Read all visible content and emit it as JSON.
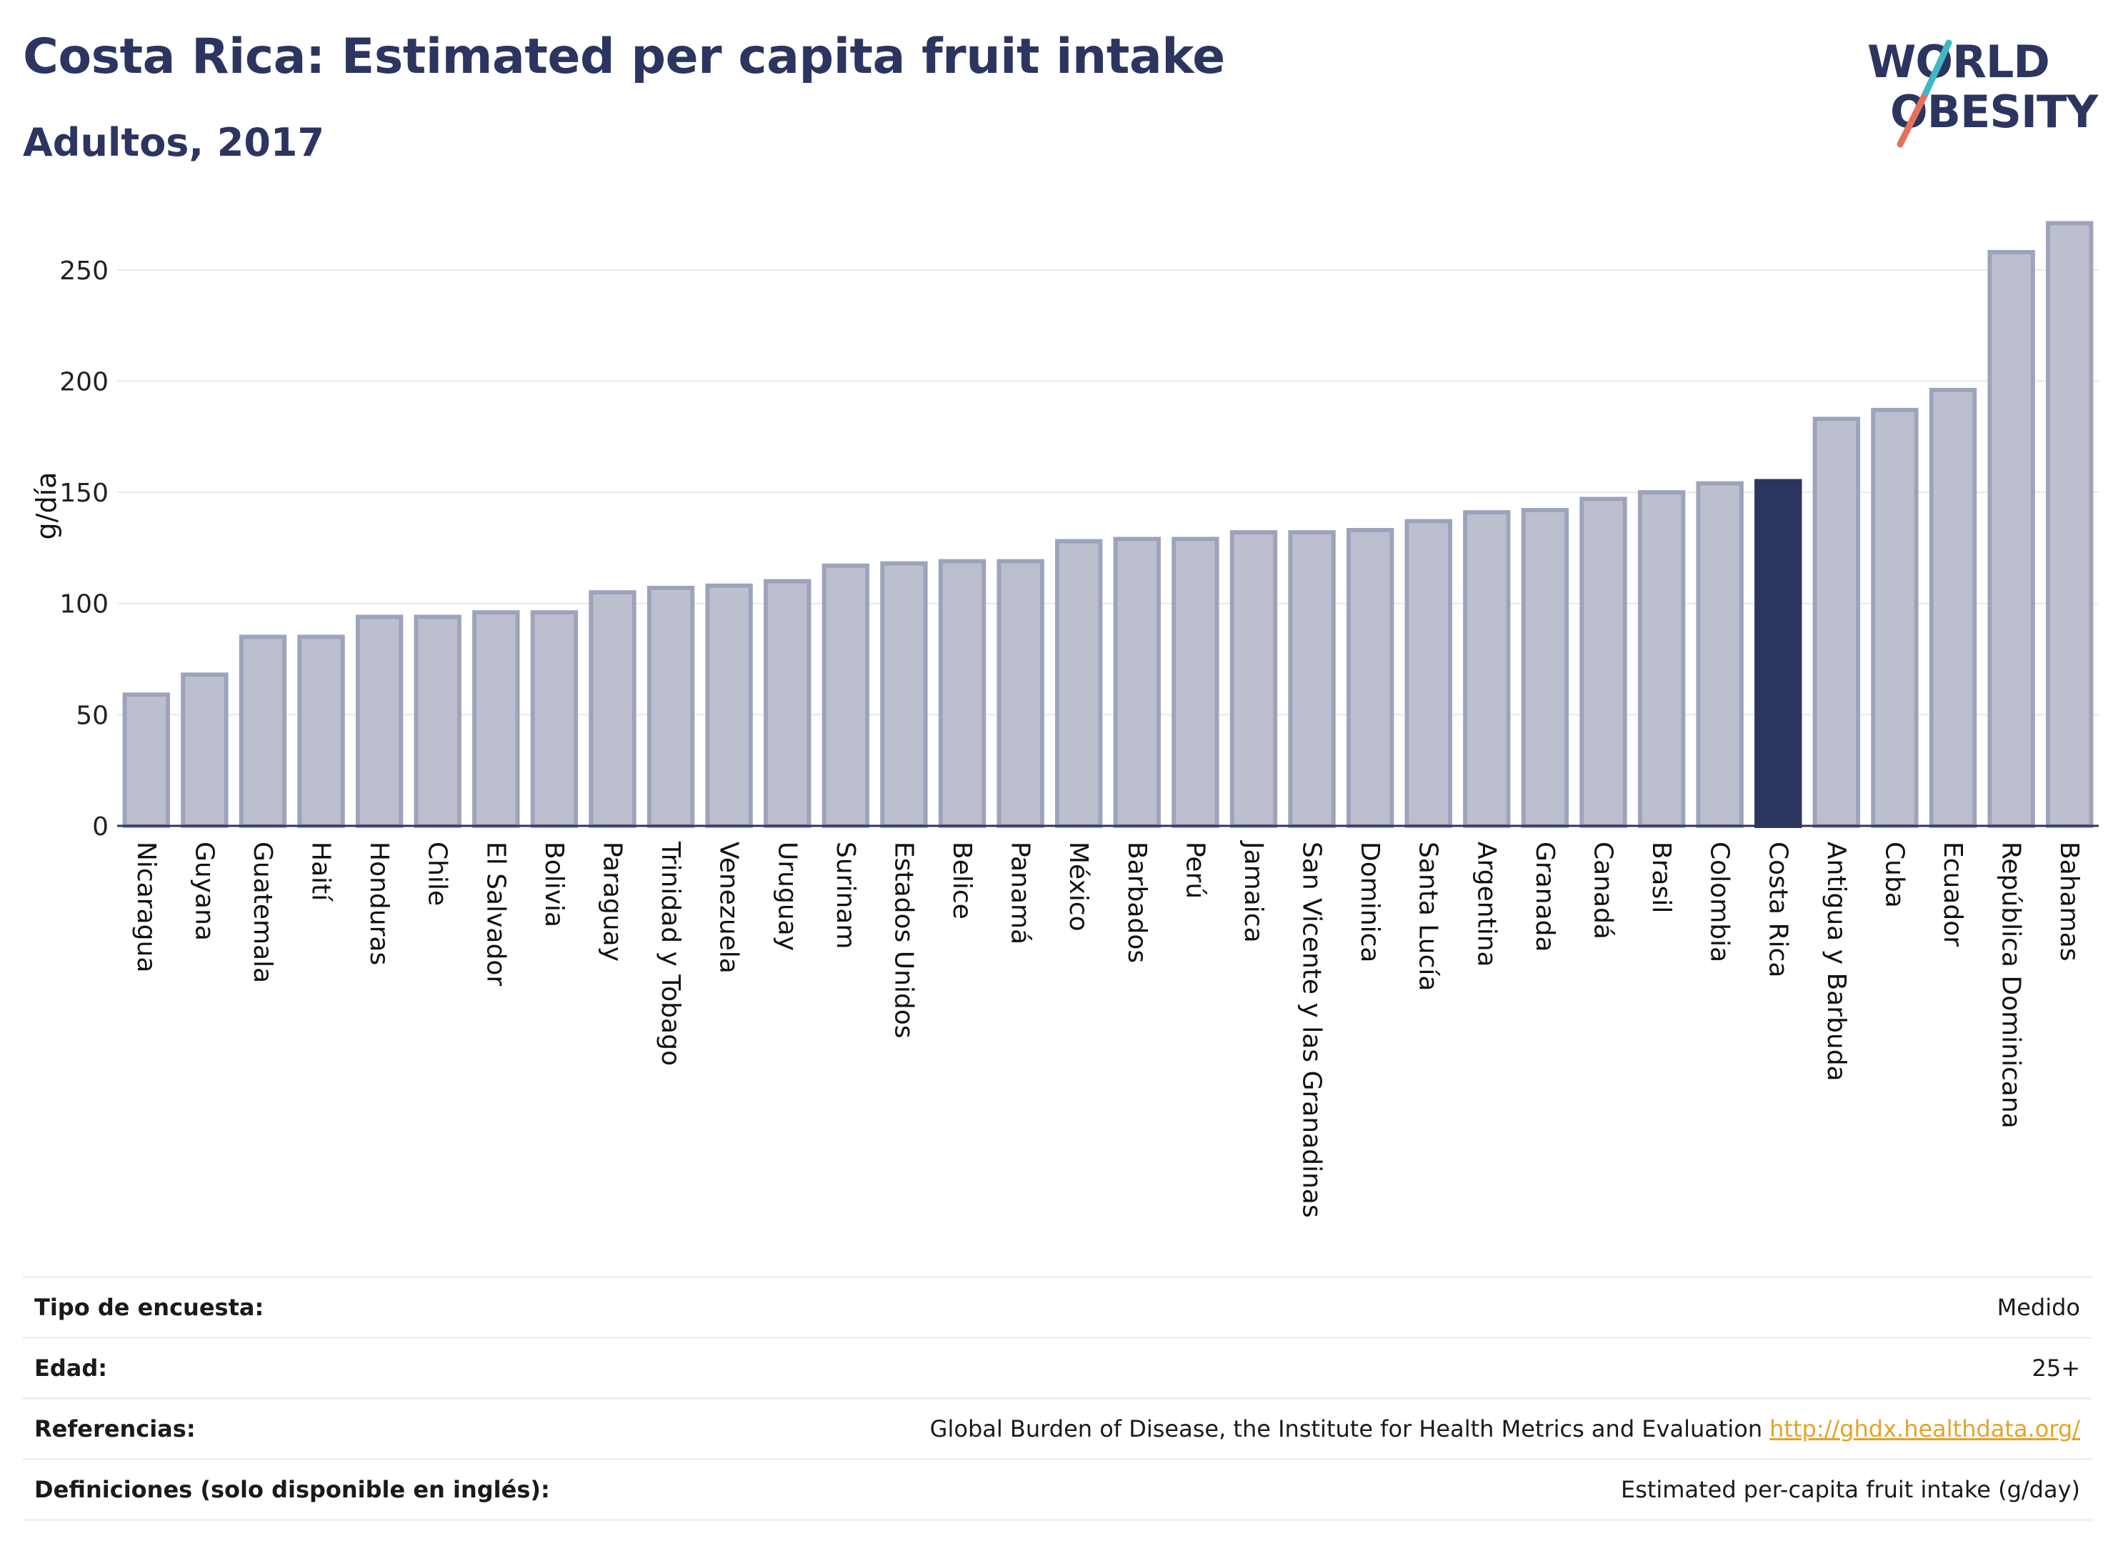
{
  "header": {
    "title": "Costa Rica: Estimated per capita fruit intake",
    "subtitle": "Adultos, 2017"
  },
  "logo": {
    "line1": "WORLD",
    "line2": "OBESITY"
  },
  "colors": {
    "bar": "#bcc0ce",
    "bar_border": "#9ea3bd",
    "highlight": "#2c3560",
    "title": "#2c3560",
    "link": "#e2a428"
  },
  "chart_data": {
    "type": "bar",
    "title": "Costa Rica: Estimated per capita fruit intake",
    "subtitle": "Adultos, 2017",
    "xlabel": "",
    "ylabel": "g/día",
    "ylim": [
      0,
      275
    ],
    "yticks": [
      0,
      50,
      100,
      150,
      200,
      250
    ],
    "grid": true,
    "highlight": "Costa Rica",
    "categories": [
      "Nicaragua",
      "Guyana",
      "Guatemala",
      "Haití",
      "Honduras",
      "Chile",
      "El Salvador",
      "Bolivia",
      "Paraguay",
      "Trinidad y Tobago",
      "Venezuela",
      "Uruguay",
      "Surinam",
      "Estados Unidos",
      "Belice",
      "Panamá",
      "México",
      "Barbados",
      "Perú",
      "Jamaica",
      "San Vicente y las Granadinas",
      "Dominica",
      "Santa Lucía",
      "Argentina",
      "Granada",
      "Canadá",
      "Brasil",
      "Colombia",
      "Costa Rica",
      "Antigua y Barbuda",
      "Cuba",
      "Ecuador",
      "República Dominicana",
      "Bahamas"
    ],
    "values": [
      59,
      68,
      85,
      85,
      94,
      94,
      96,
      96,
      105,
      107,
      108,
      110,
      117,
      118,
      119,
      119,
      128,
      129,
      129,
      132,
      132,
      133,
      137,
      141,
      142,
      147,
      150,
      154,
      155,
      183,
      187,
      196,
      258,
      271
    ]
  },
  "meta": [
    {
      "key": "Tipo de encuesta:",
      "value": "Medido"
    },
    {
      "key": "Edad:",
      "value": "25+"
    },
    {
      "key": "Referencias:",
      "value": "Global Burden of Disease, the Institute for Health Metrics and Evaluation",
      "link": "http://ghdx.healthdata.org/"
    },
    {
      "key": "Definiciones (solo disponible en inglés):",
      "value": "Estimated per-capita fruit intake (g/day)"
    }
  ]
}
